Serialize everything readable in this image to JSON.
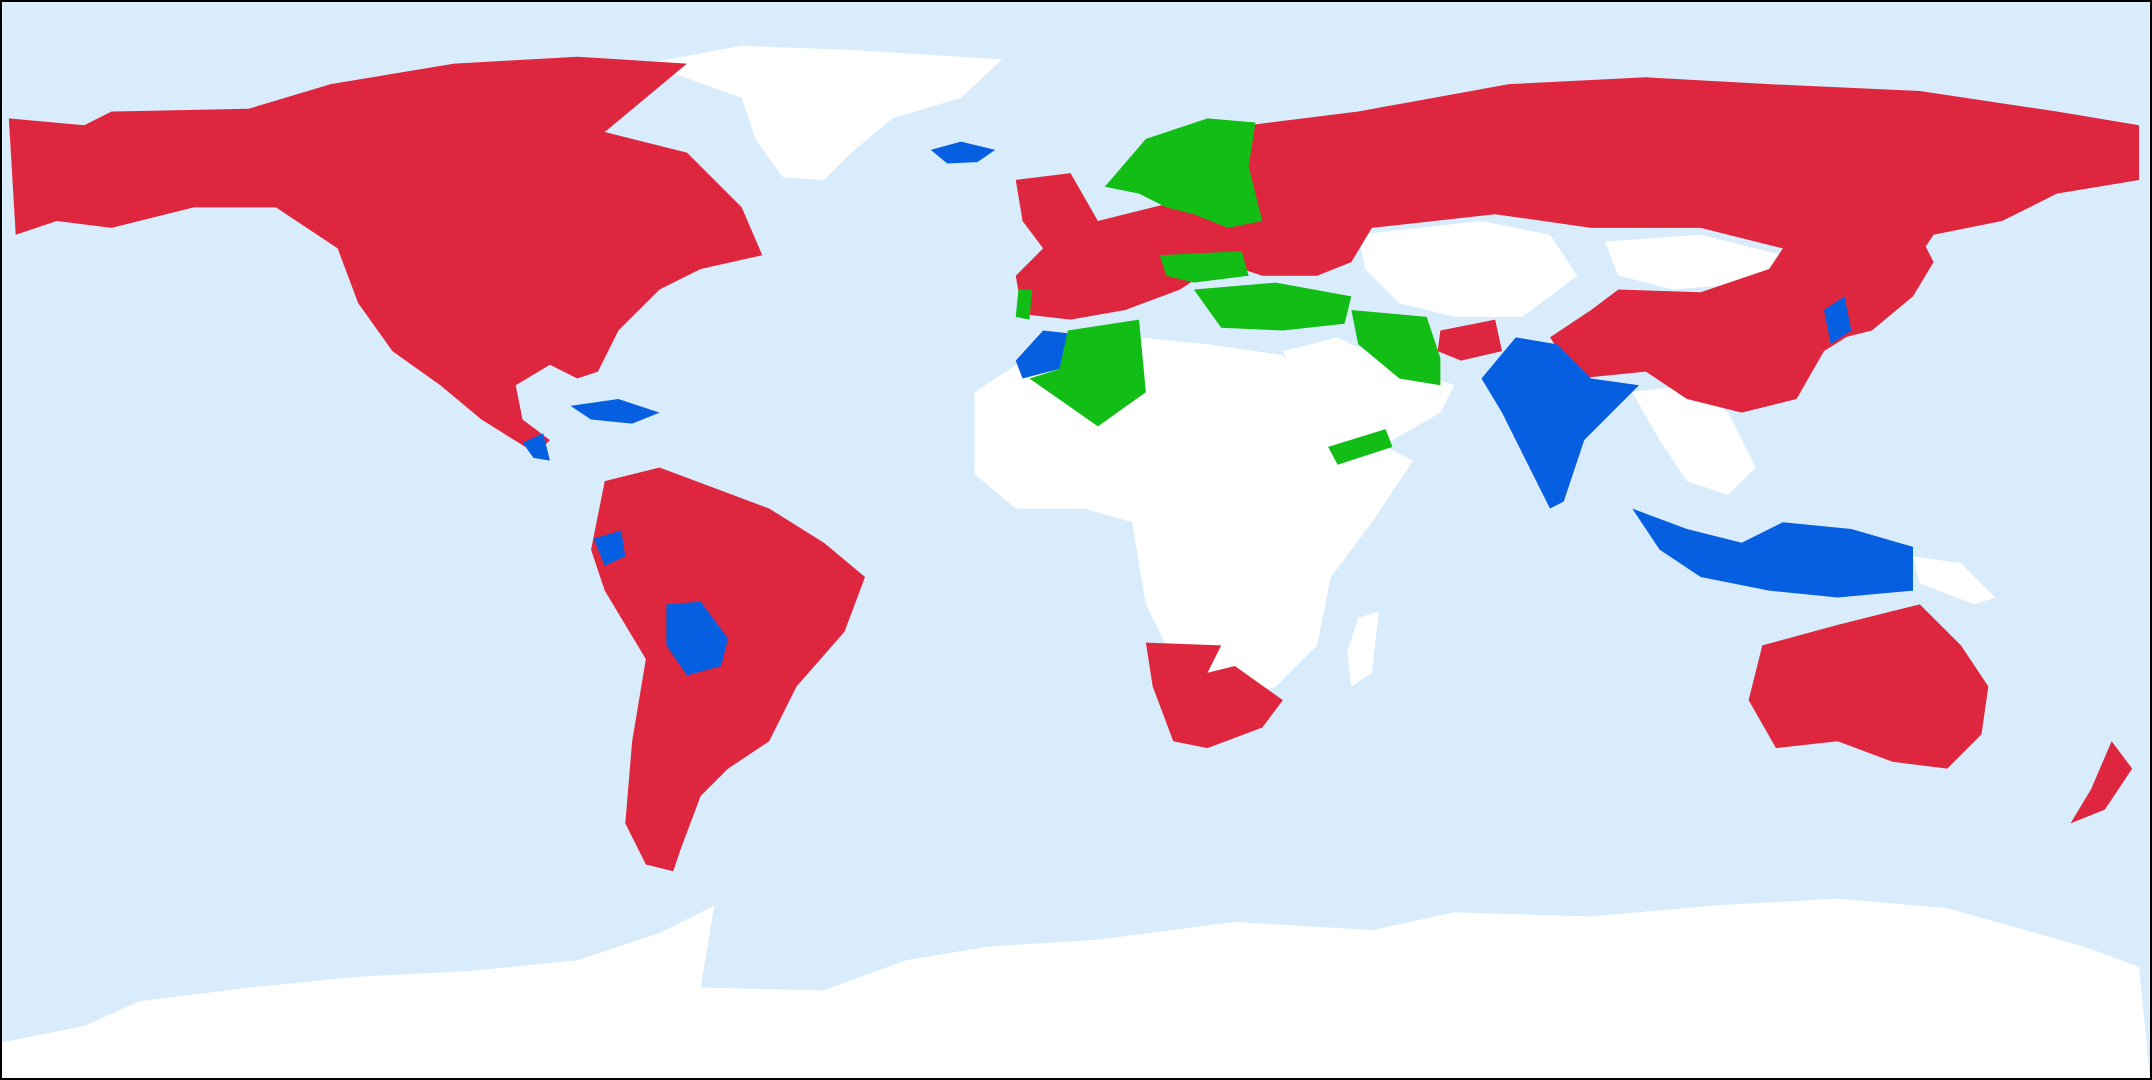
{
  "map": {
    "colors": {
      "ocean": "#d9ecfc",
      "no_data": "#ffffff",
      "red": "#de273e",
      "blue": "#065ee0",
      "green": "#12bd16",
      "border": "#000000"
    }
  }
}
